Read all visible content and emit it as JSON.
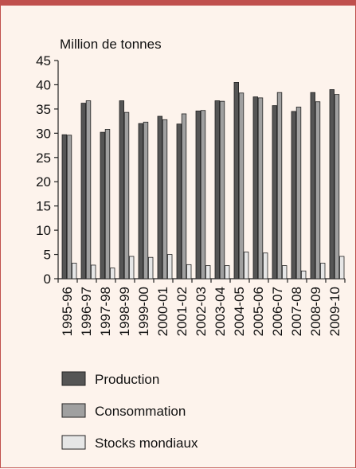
{
  "chart_data": {
    "type": "bar",
    "ylabel": "Million de tonnes",
    "ylim": [
      0,
      45
    ],
    "yticks": [
      0,
      5,
      10,
      15,
      20,
      25,
      30,
      35,
      40,
      45
    ],
    "categories": [
      "1995-96",
      "1996-97",
      "1997-98",
      "1998-99",
      "1999-00",
      "2000-01",
      "2001-02",
      "2002-03",
      "2003-04",
      "2004-05",
      "2005-06",
      "2006-07",
      "2007-08",
      "2008-09",
      "2009-10"
    ],
    "series": [
      {
        "name": "Production",
        "color": "#555555",
        "values": [
          29.7,
          36.2,
          30.2,
          36.7,
          32.0,
          33.5,
          31.9,
          34.6,
          36.7,
          40.5,
          37.5,
          35.7,
          34.5,
          38.4,
          39.0
        ]
      },
      {
        "name": "Consommation",
        "color": "#a0a0a0",
        "values": [
          29.6,
          36.7,
          30.8,
          34.3,
          32.3,
          32.8,
          34.0,
          34.7,
          36.6,
          38.3,
          37.3,
          38.4,
          35.4,
          36.5,
          38.0
        ]
      },
      {
        "name": "Stocks mondiaux",
        "color": "#e6e6e6",
        "values": [
          3.2,
          2.8,
          2.2,
          4.6,
          4.4,
          5.0,
          2.9,
          2.7,
          2.7,
          5.5,
          5.3,
          2.7,
          1.6,
          3.2,
          4.6
        ]
      }
    ],
    "legend_position": "bottom"
  }
}
